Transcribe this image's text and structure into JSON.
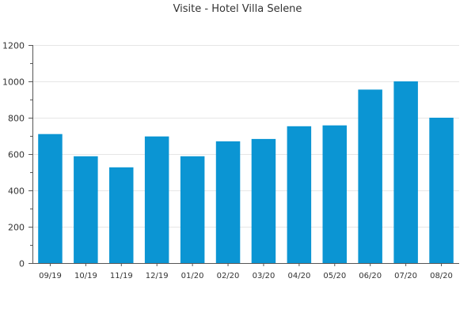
{
  "chart_data": {
    "type": "bar",
    "title": "Visite - Hotel Villa Selene",
    "xlabel": "",
    "ylabel": "",
    "categories": [
      "09/19",
      "10/19",
      "11/19",
      "12/19",
      "01/20",
      "02/20",
      "03/20",
      "04/20",
      "05/20",
      "06/20",
      "07/20",
      "08/20"
    ],
    "values": [
      710,
      588,
      527,
      697,
      588,
      670,
      683,
      753,
      758,
      955,
      1000,
      800
    ],
    "ylim": [
      0,
      1200
    ],
    "yticks": [
      0,
      200,
      400,
      600,
      800,
      1000,
      1200
    ],
    "grid": true,
    "legend": "none",
    "colors": {
      "bar": "#0b95d3",
      "grid": "#e6e6e6",
      "axis": "#555555",
      "text": "#333333"
    }
  }
}
